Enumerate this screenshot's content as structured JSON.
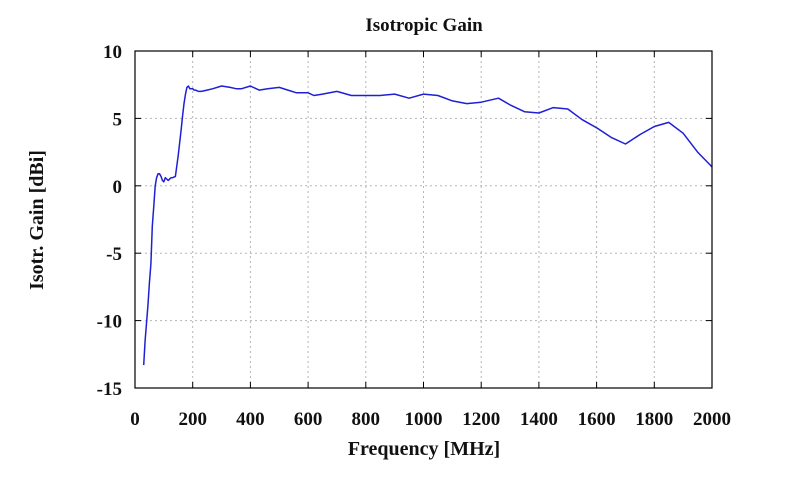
{
  "chart_data": {
    "type": "line",
    "title": "Isotropic Gain",
    "xlabel": "Frequency [MHz]",
    "ylabel": "Isotr. Gain [dBi]",
    "xlim": [
      0,
      2000
    ],
    "ylim": [
      -15,
      10
    ],
    "x_ticks": [
      0,
      200,
      400,
      600,
      800,
      1000,
      1200,
      1400,
      1600,
      1800,
      2000
    ],
    "y_ticks": [
      -15,
      -10,
      -5,
      0,
      5,
      10
    ],
    "grid": true,
    "line_color": "#1f1fd6",
    "series": [
      {
        "x": [
          30,
          35,
          40,
          45,
          50,
          55,
          60,
          65,
          70,
          75,
          80,
          85,
          90,
          95,
          100,
          105,
          110,
          115,
          120,
          125,
          130,
          140,
          150,
          160,
          165,
          170,
          175,
          180,
          185,
          190,
          195,
          200,
          205,
          210,
          220,
          230,
          250,
          270,
          300,
          330,
          350,
          370,
          400,
          430,
          460,
          500,
          530,
          560,
          600,
          620,
          650,
          700,
          750,
          800,
          850,
          900,
          950,
          1000,
          1050,
          1100,
          1150,
          1200,
          1260,
          1300,
          1350,
          1400,
          1450,
          1500,
          1550,
          1600,
          1650,
          1700,
          1750,
          1800,
          1850,
          1900,
          1950,
          2000
        ],
        "y": [
          -13.3,
          -11.5,
          -10.2,
          -8.8,
          -7.2,
          -5.8,
          -3.0,
          -1.5,
          0.0,
          0.6,
          0.9,
          0.9,
          0.7,
          0.4,
          0.3,
          0.6,
          0.5,
          0.4,
          0.5,
          0.6,
          0.6,
          0.7,
          2.3,
          4.2,
          5.2,
          6.1,
          6.8,
          7.3,
          7.4,
          7.2,
          7.2,
          7.2,
          7.1,
          7.1,
          7.0,
          7.0,
          7.1,
          7.2,
          7.4,
          7.3,
          7.2,
          7.2,
          7.4,
          7.1,
          7.2,
          7.3,
          7.1,
          6.9,
          6.9,
          6.7,
          6.8,
          7.0,
          6.7,
          6.7,
          6.7,
          6.8,
          6.5,
          6.8,
          6.7,
          6.3,
          6.1,
          6.2,
          6.5,
          6.0,
          5.5,
          5.4,
          5.8,
          5.7,
          4.9,
          4.3,
          3.6,
          3.1,
          3.8,
          4.4,
          4.7,
          3.9,
          2.5,
          1.4
        ]
      }
    ]
  }
}
